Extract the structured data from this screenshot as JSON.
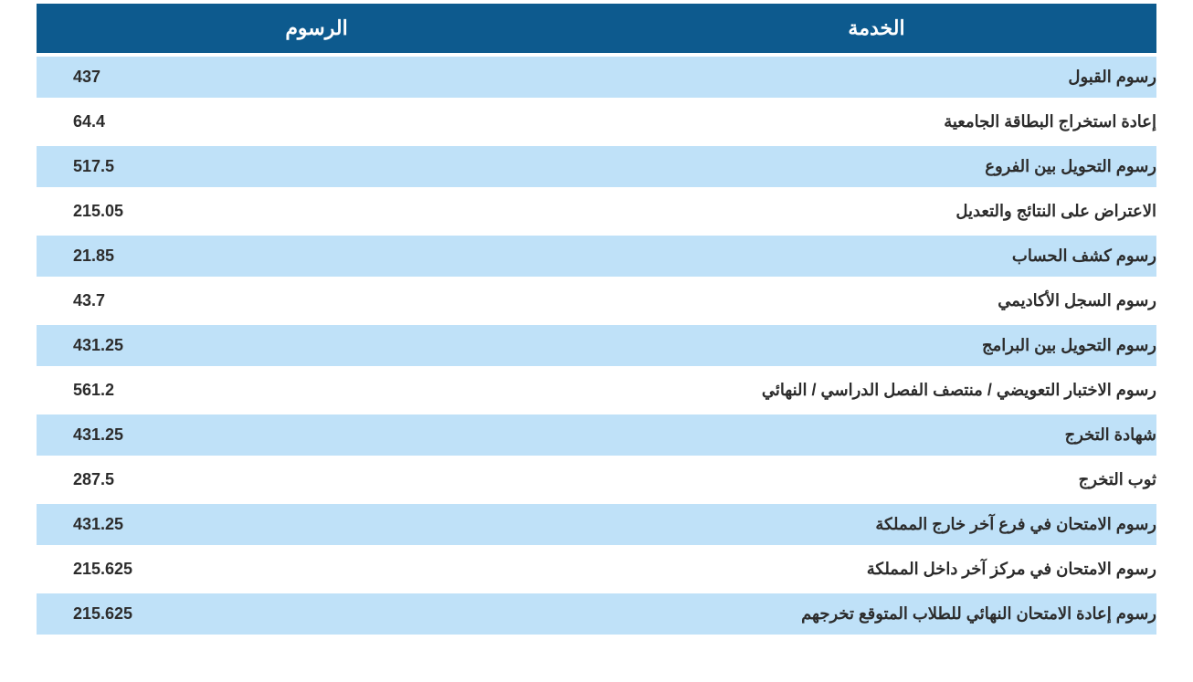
{
  "table": {
    "header_bg_color": "#0d5a8e",
    "header_text_color": "#ffffff",
    "row_even_bg": "#bfe1f8",
    "row_odd_bg": "#ffffff",
    "text_color": "#2c2c2c",
    "header_fontsize": 22,
    "cell_fontsize": 18,
    "columns": {
      "service": "الخدمة",
      "fee": "الرسوم"
    },
    "rows": [
      {
        "service": "رسوم القبول",
        "fee": "437"
      },
      {
        "service": "إعادة استخراج البطاقة الجامعية",
        "fee": "64.4"
      },
      {
        "service": "رسوم التحويل بين الفروع",
        "fee": "517.5"
      },
      {
        "service": "الاعتراض على النتائج والتعديل",
        "fee": "215.05"
      },
      {
        "service": "رسوم كشف الحساب",
        "fee": "21.85"
      },
      {
        "service": "رسوم السجل الأكاديمي",
        "fee": "43.7"
      },
      {
        "service": "رسوم التحويل بين البرامج",
        "fee": "431.25"
      },
      {
        "service": "رسوم الاختبار التعويضي / منتصف الفصل الدراسي / النهائي",
        "fee": "561.2"
      },
      {
        "service": "شهادة التخرج",
        "fee": "431.25"
      },
      {
        "service": "ثوب التخرج",
        "fee": "287.5"
      },
      {
        "service": "رسوم الامتحان في فرع آخر خارج المملكة",
        "fee": "431.25"
      },
      {
        "service": "رسوم الامتحان في مركز آخر داخل المملكة",
        "fee": "215.625"
      },
      {
        "service": "رسوم إعادة الامتحان النهائي للطلاب المتوقع تخرجهم",
        "fee": "215.625"
      }
    ]
  }
}
